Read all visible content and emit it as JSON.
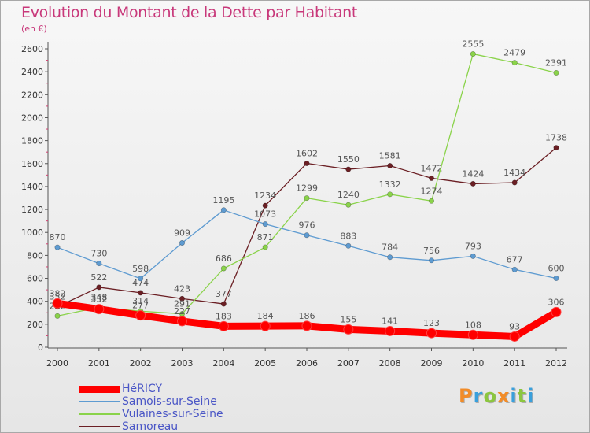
{
  "chart_data": {
    "type": "line",
    "title": "Evolution du Montant de la Dette par Habitant",
    "subtitle": "(en €)",
    "xlabel": "",
    "ylabel": "",
    "x": [
      2000,
      2001,
      2002,
      2003,
      2004,
      2005,
      2006,
      2007,
      2008,
      2009,
      2010,
      2011,
      2012
    ],
    "ylim": [
      0,
      2600
    ],
    "yticks": [
      0,
      200,
      400,
      600,
      800,
      1000,
      1200,
      1400,
      1600,
      1800,
      2000,
      2200,
      2400,
      2600
    ],
    "grid": false,
    "legend_position": "bottom-left",
    "series": [
      {
        "name": "Samoreau",
        "color": "#6b1f24",
        "values": [
          352,
          522,
          474,
          423,
          377,
          1234,
          1602,
          1550,
          1581,
          1472,
          1424,
          1434,
          1738
        ]
      },
      {
        "name": "Vulaines-sur-Seine",
        "color": "#8ad34a",
        "values": [
          272,
          348,
          314,
          291,
          686,
          871,
          1299,
          1240,
          1332,
          1274,
          2555,
          2479,
          2391
        ]
      },
      {
        "name": "Samois-sur-Seine",
        "color": "#5e9bd1",
        "values": [
          870,
          730,
          598,
          909,
          1195,
          1073,
          976,
          883,
          784,
          756,
          793,
          677,
          600
        ]
      },
      {
        "name": "HéRICY",
        "color": "#ff0000",
        "values": [
          382,
          332,
          277,
          227,
          183,
          184,
          186,
          155,
          141,
          123,
          108,
          93,
          306
        ]
      }
    ]
  },
  "legend": {
    "items": [
      {
        "label": "HéRICY",
        "color": "#ff0000",
        "thickness": 9
      },
      {
        "label": "Samois-sur-Seine",
        "color": "#5e9bd1",
        "thickness": 2
      },
      {
        "label": "Vulaines-sur-Seine",
        "color": "#8ad34a",
        "thickness": 2
      },
      {
        "label": "Samoreau",
        "color": "#6b1f24",
        "thickness": 2
      }
    ]
  },
  "logo": {
    "letters": [
      "P",
      "r",
      "o",
      "x",
      "i",
      "t",
      "i"
    ],
    "colors": [
      "#f28c28",
      "#3aa0dc",
      "#8cc63f",
      "#f28c28",
      "#3aa0dc",
      "#8cc63f",
      "#3aa0dc"
    ]
  }
}
